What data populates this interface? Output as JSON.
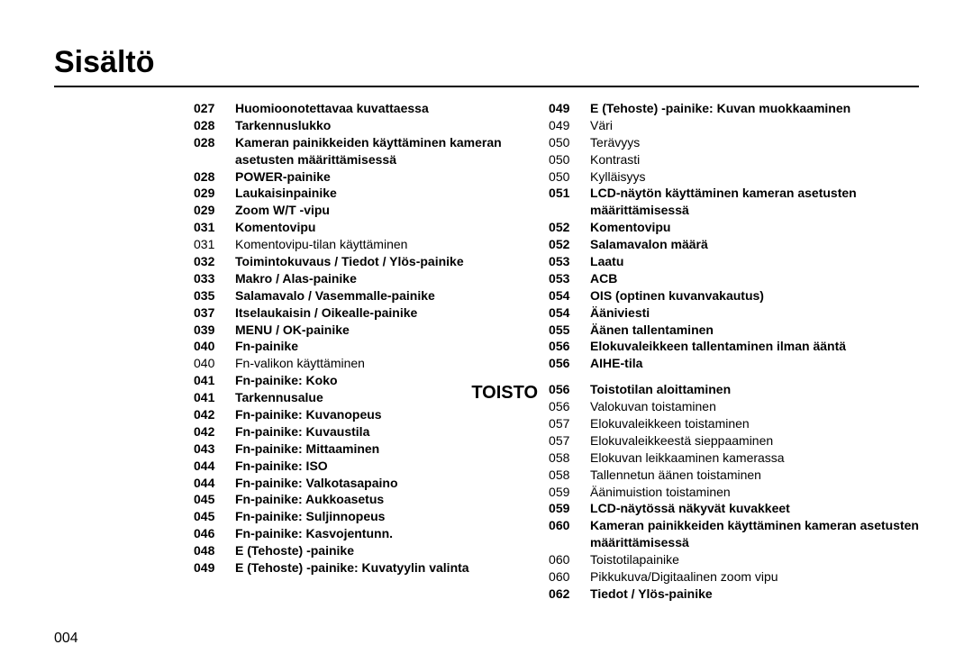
{
  "title": "Sisältö",
  "pageNumber": "004",
  "sectionLabel": "TOISTO",
  "colors": {
    "background": "#ffffff",
    "text": "#000000",
    "rule": "#000000"
  },
  "typography": {
    "title_fontsize": 34,
    "section_fontsize": 20,
    "entry_fontsize": 14,
    "pagenum_fontsize": 16,
    "font_family": "Arial"
  },
  "col1": [
    {
      "pg": "027",
      "txt": "Huomioonotettavaa kuvattaessa",
      "bold": true
    },
    {
      "pg": "028",
      "txt": "Tarkennuslukko",
      "bold": true
    },
    {
      "pg": "028",
      "txt": "Kameran painikkeiden käyttäminen kameran asetusten määrittämisessä",
      "bold": true
    },
    {
      "pg": "028",
      "txt": "POWER-painike",
      "bold": true
    },
    {
      "pg": "029",
      "txt": "Laukaisinpainike",
      "bold": true
    },
    {
      "pg": "029",
      "txt": "Zoom W/T -vipu",
      "bold": true
    },
    {
      "pg": "031",
      "txt": "Komentovipu",
      "bold": true
    },
    {
      "pg": "031",
      "txt": "Komentovipu-tilan käyttäminen",
      "bold": false
    },
    {
      "pg": "032",
      "txt": "Toimintokuvaus / Tiedot / Ylös-painike",
      "bold": true
    },
    {
      "pg": "033",
      "txt": "Makro / Alas-painike",
      "bold": true
    },
    {
      "pg": "035",
      "txt": "Salamavalo / Vasemmalle-painike",
      "bold": true
    },
    {
      "pg": "037",
      "txt": "Itselaukaisin / Oikealle-painike",
      "bold": true
    },
    {
      "pg": "039",
      "txt": "MENU / OK-painike",
      "bold": true
    },
    {
      "pg": "040",
      "txt": "Fn-painike",
      "bold": true
    },
    {
      "pg": "040",
      "txt": "Fn-valikon käyttäminen",
      "bold": false
    },
    {
      "pg": "041",
      "txt": "Fn-painike: Koko",
      "bold": true
    },
    {
      "pg": "041",
      "txt": "Tarkennusalue",
      "bold": true
    },
    {
      "pg": "042",
      "txt": "Fn-painike: Kuvanopeus",
      "bold": true
    },
    {
      "pg": "042",
      "txt": "Fn-painike: Kuvaustila",
      "bold": true
    },
    {
      "pg": "043",
      "txt": "Fn-painike: Mittaaminen",
      "bold": true
    },
    {
      "pg": "044",
      "txt": "Fn-painike: ISO",
      "bold": true
    },
    {
      "pg": "044",
      "txt": "Fn-painike: Valkotasapaino",
      "bold": true
    },
    {
      "pg": "045",
      "txt": "Fn-painike: Aukkoasetus",
      "bold": true
    },
    {
      "pg": "045",
      "txt": "Fn-painike: Suljinnopeus",
      "bold": true
    },
    {
      "pg": "046",
      "txt": "Fn-painike: Kasvojentunn.",
      "bold": true
    },
    {
      "pg": "048",
      "txt": "E (Tehoste) -painike",
      "bold": true
    },
    {
      "pg": "049",
      "txt": "E (Tehoste) -painike: Kuvatyylin valinta",
      "bold": true
    }
  ],
  "col2": [
    {
      "pg": "049",
      "txt": "E (Tehoste) -painike: Kuvan muokkaaminen",
      "bold": true
    },
    {
      "pg": "049",
      "txt": "Väri",
      "bold": false
    },
    {
      "pg": "050",
      "txt": "Terävyys",
      "bold": false
    },
    {
      "pg": "050",
      "txt": "Kontrasti",
      "bold": false
    },
    {
      "pg": "050",
      "txt": "Kylläisyys",
      "bold": false
    },
    {
      "pg": "051",
      "txt": "LCD-näytön käyttäminen kameran asetusten määrittämisessä",
      "bold": true
    },
    {
      "pg": "052",
      "txt": "Komentovipu",
      "bold": true
    },
    {
      "pg": "052",
      "txt": "Salamavalon määrä",
      "bold": true
    },
    {
      "pg": "053",
      "txt": "Laatu",
      "bold": true
    },
    {
      "pg": "053",
      "txt": "ACB",
      "bold": true
    },
    {
      "pg": "054",
      "txt": "OIS (optinen kuvanvakautus)",
      "bold": true
    },
    {
      "pg": "054",
      "txt": "Ääniviesti",
      "bold": true
    },
    {
      "pg": "055",
      "txt": "Äänen tallentaminen",
      "bold": true
    },
    {
      "pg": "056",
      "txt": "Elokuvaleikkeen tallentaminen ilman ääntä",
      "bold": true
    },
    {
      "pg": "056",
      "txt": "AIHE-tila",
      "bold": true
    },
    {
      "pg": "",
      "txt": "",
      "bold": false,
      "spacer": true
    },
    {
      "pg": "056",
      "txt": "Toistotilan aloittaminen",
      "bold": true,
      "sectionStart": true
    },
    {
      "pg": "056",
      "txt": "Valokuvan toistaminen",
      "bold": false
    },
    {
      "pg": "057",
      "txt": "Elokuvaleikkeen toistaminen",
      "bold": false
    },
    {
      "pg": "057",
      "txt": "Elokuvaleikkeestä sieppaaminen",
      "bold": false
    },
    {
      "pg": "058",
      "txt": "Elokuvan leikkaaminen kamerassa",
      "bold": false
    },
    {
      "pg": "058",
      "txt": "Tallennetun äänen toistaminen",
      "bold": false
    },
    {
      "pg": "059",
      "txt": "Äänimuistion toistaminen",
      "bold": false
    },
    {
      "pg": "059",
      "txt": "LCD-näytössä näkyvät kuvakkeet",
      "bold": true
    },
    {
      "pg": "060",
      "txt": "Kameran painikkeiden käyttäminen kameran asetusten määrittämisessä",
      "bold": true
    },
    {
      "pg": "060",
      "txt": "Toistotilapainike",
      "bold": false
    },
    {
      "pg": "060",
      "txt": "Pikkukuva/Digitaalinen zoom vipu",
      "bold": false
    },
    {
      "pg": "062",
      "txt": "Tiedot / Ylös-painike",
      "bold": true
    }
  ]
}
